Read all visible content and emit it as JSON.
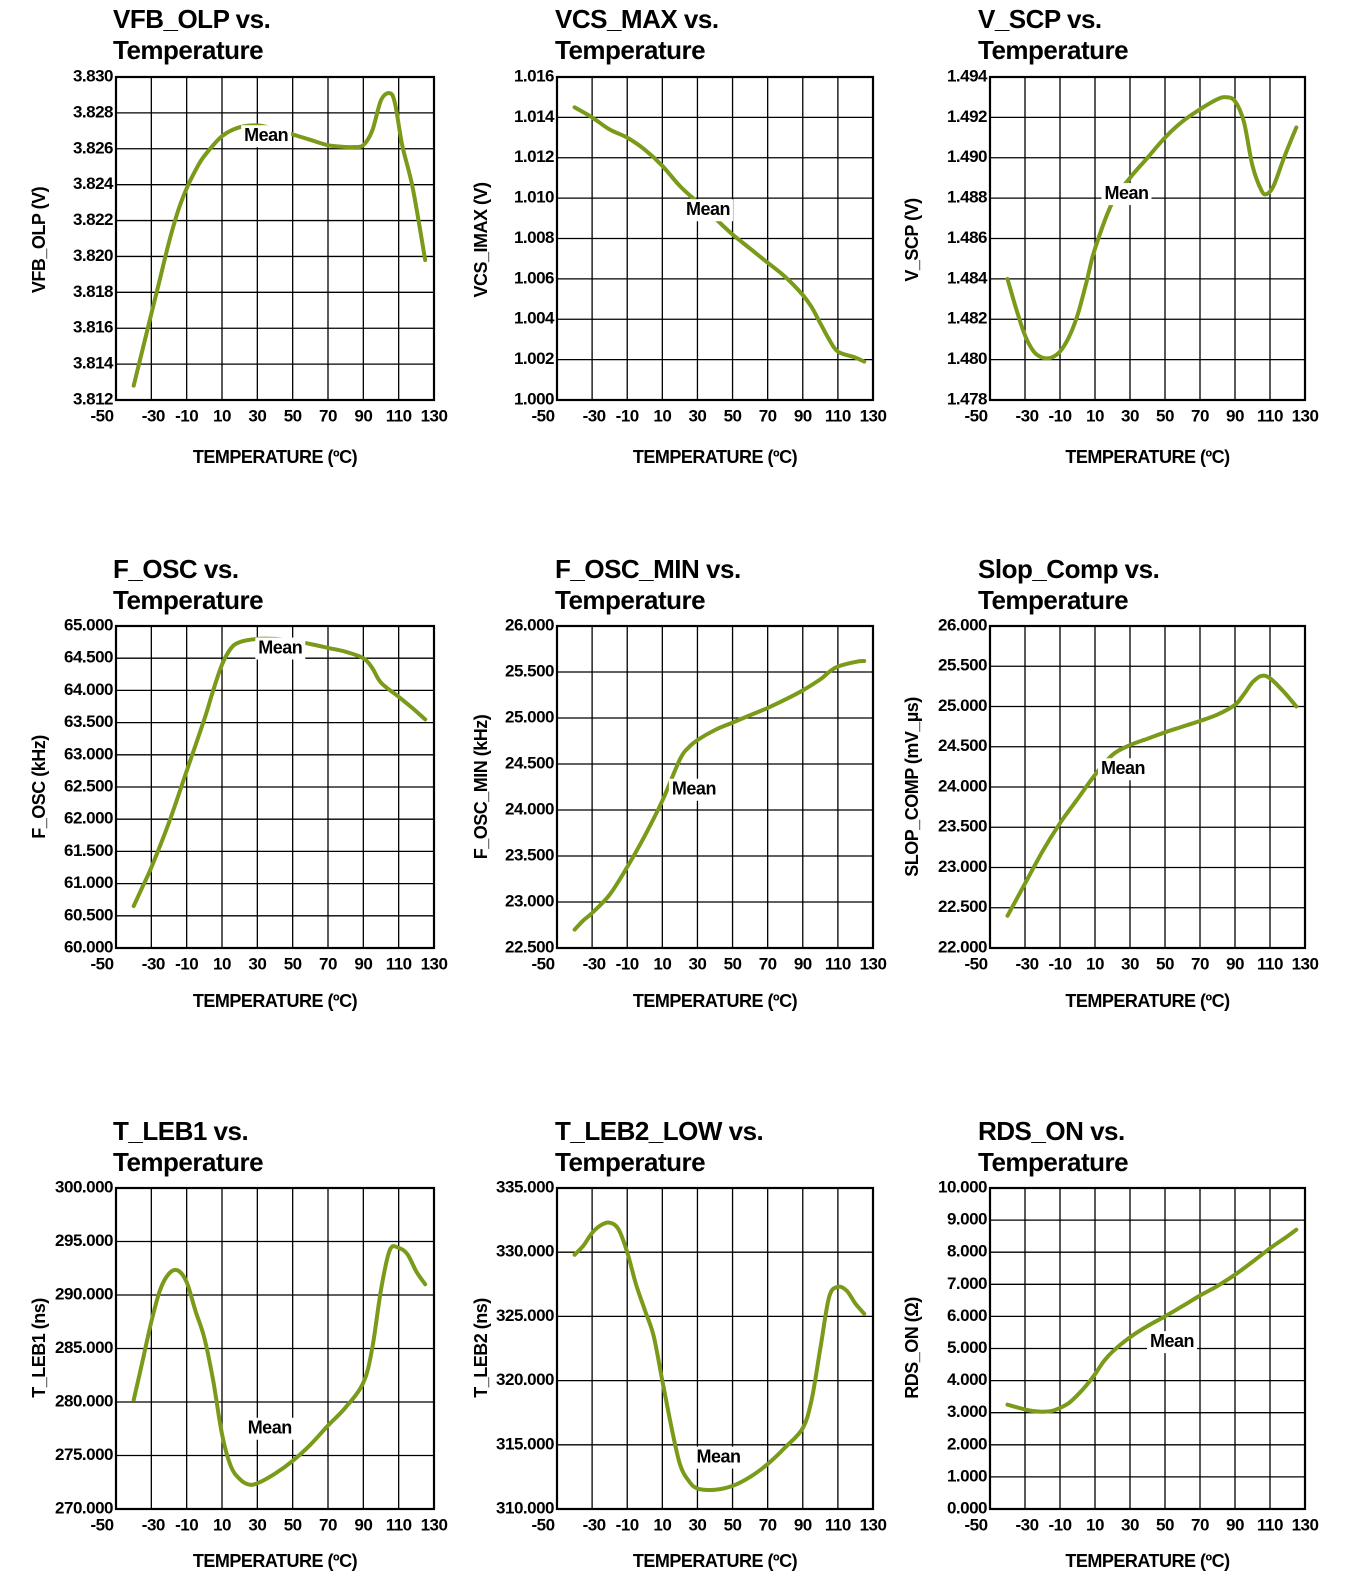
{
  "colors": {
    "curve": "#7a9a1a",
    "grid": "#000000",
    "background": "#ffffff"
  },
  "chart_data": [
    {
      "type": "line",
      "title": [
        "VFB_OLP vs.",
        "Temperature"
      ],
      "xlabel": "TEMPERATURE (ºC)",
      "ylabel": "VFB_OLP (V)",
      "xlim": [
        -50,
        130
      ],
      "xticks": [
        "-50",
        "-30",
        "-10",
        "10",
        "30",
        "50",
        "70",
        "90",
        "110",
        "130"
      ],
      "ylim": [
        3.812,
        3.83
      ],
      "yticks": [
        "3.812",
        "3.814",
        "3.816",
        "3.818",
        "3.820",
        "3.822",
        "3.824",
        "3.826",
        "3.828",
        "3.830"
      ],
      "grid": true,
      "series": [
        {
          "name": "Mean",
          "x": [
            -40,
            -35,
            -30,
            -25,
            -20,
            -15,
            -10,
            -5,
            0,
            10,
            20,
            30,
            40,
            50,
            60,
            70,
            80,
            85,
            90,
            95,
            100,
            105,
            108,
            112,
            118,
            125
          ],
          "values": [
            3.8128,
            3.8148,
            3.8168,
            3.8188,
            3.8208,
            3.8225,
            3.8238,
            3.8248,
            3.8256,
            3.8267,
            3.8272,
            3.8273,
            3.8271,
            3.8268,
            3.8265,
            3.8262,
            3.8261,
            3.8261,
            3.8262,
            3.827,
            3.8287,
            3.8291,
            3.8285,
            3.8262,
            3.8238,
            3.8198
          ]
        }
      ],
      "annotation": {
        "text": "Mean",
        "x": 35,
        "y": 3.8267
      }
    },
    {
      "type": "line",
      "title": [
        "VCS_MAX vs.",
        "Temperature"
      ],
      "xlabel": "TEMPERATURE (ºC)",
      "ylabel": "VCS_IMAX (V)",
      "xlim": [
        -50,
        130
      ],
      "xticks": [
        "-50",
        "-30",
        "-10",
        "10",
        "30",
        "50",
        "70",
        "90",
        "110",
        "130"
      ],
      "ylim": [
        1.0,
        1.016
      ],
      "yticks": [
        "1.000",
        "1.002",
        "1.004",
        "1.006",
        "1.008",
        "1.010",
        "1.012",
        "1.014",
        "1.016"
      ],
      "grid": true,
      "series": [
        {
          "name": "Mean",
          "x": [
            -40,
            -30,
            -20,
            -10,
            0,
            10,
            20,
            30,
            40,
            50,
            60,
            70,
            80,
            90,
            95,
            100,
            105,
            110,
            120,
            125
          ],
          "values": [
            1.0145,
            1.014,
            1.0134,
            1.013,
            1.0124,
            1.0116,
            1.0106,
            1.0098,
            1.009,
            1.0082,
            1.0075,
            1.0068,
            1.0061,
            1.0052,
            1.0046,
            1.0038,
            1.003,
            1.0024,
            1.0021,
            1.0019
          ]
        }
      ],
      "annotation": {
        "text": "Mean",
        "x": 36,
        "y": 1.0094
      }
    },
    {
      "type": "line",
      "title": [
        "V_SCP vs.",
        "Temperature"
      ],
      "xlabel": "TEMPERATURE (ºC)",
      "ylabel": "V_SCP (V)",
      "xlim": [
        -50,
        130
      ],
      "xticks": [
        "-50",
        "-30",
        "-10",
        "10",
        "30",
        "50",
        "70",
        "90",
        "110",
        "130"
      ],
      "ylim": [
        1.478,
        1.494
      ],
      "yticks": [
        "1.478",
        "1.480",
        "1.482",
        "1.484",
        "1.486",
        "1.488",
        "1.490",
        "1.492",
        "1.494"
      ],
      "grid": true,
      "series": [
        {
          "name": "Mean",
          "x": [
            -40,
            -35,
            -30,
            -25,
            -20,
            -15,
            -10,
            -5,
            0,
            5,
            10,
            20,
            30,
            40,
            50,
            60,
            70,
            80,
            85,
            90,
            95,
            100,
            105,
            108,
            112,
            118,
            125
          ],
          "values": [
            1.484,
            1.4825,
            1.4812,
            1.4804,
            1.4801,
            1.4801,
            1.4804,
            1.4811,
            1.4822,
            1.4838,
            1.4855,
            1.4878,
            1.489,
            1.49,
            1.491,
            1.4918,
            1.4924,
            1.4929,
            1.493,
            1.4928,
            1.4918,
            1.4896,
            1.4884,
            1.4882,
            1.4886,
            1.49,
            1.4915
          ]
        }
      ],
      "annotation": {
        "text": "Mean",
        "x": 28,
        "y": 1.4882
      }
    },
    {
      "type": "line",
      "title": [
        "F_OSC vs.",
        "Temperature"
      ],
      "xlabel": "TEMPERATURE (ºC)",
      "ylabel": "F_OSC (kHz)",
      "xlim": [
        -50,
        130
      ],
      "xticks": [
        "-50",
        "-30",
        "-10",
        "10",
        "30",
        "50",
        "70",
        "90",
        "110",
        "130"
      ],
      "ylim": [
        60.0,
        65.0
      ],
      "yticks": [
        "60.000",
        "60.500",
        "61.000",
        "61.500",
        "62.000",
        "62.500",
        "63.000",
        "63.500",
        "64.000",
        "64.500",
        "65.000"
      ],
      "grid": true,
      "series": [
        {
          "name": "Mean",
          "x": [
            -40,
            -35,
            -30,
            -20,
            -10,
            0,
            5,
            10,
            15,
            20,
            30,
            40,
            50,
            60,
            70,
            80,
            90,
            95,
            100,
            110,
            118,
            125
          ],
          "values": [
            60.65,
            60.95,
            61.25,
            61.95,
            62.75,
            63.55,
            64.0,
            64.4,
            64.65,
            64.75,
            64.8,
            64.8,
            64.77,
            64.72,
            64.66,
            64.6,
            64.5,
            64.35,
            64.12,
            63.9,
            63.72,
            63.55
          ]
        }
      ],
      "annotation": {
        "text": "Mean",
        "x": 43,
        "y": 64.65
      }
    },
    {
      "type": "line",
      "title": [
        "F_OSC_MIN vs.",
        "Temperature"
      ],
      "xlabel": "TEMPERATURE (ºC)",
      "ylabel": "F_OSC_MIN (kHz)",
      "xlim": [
        -50,
        130
      ],
      "xticks": [
        "-50",
        "-30",
        "-10",
        "10",
        "30",
        "50",
        "70",
        "90",
        "110",
        "130"
      ],
      "ylim": [
        22.5,
        26.0
      ],
      "yticks": [
        "22.500",
        "23.000",
        "23.500",
        "24.000",
        "24.500",
        "25.000",
        "25.500",
        "26.000"
      ],
      "grid": true,
      "series": [
        {
          "name": "Mean",
          "x": [
            -40,
            -35,
            -30,
            -20,
            -10,
            0,
            10,
            20,
            25,
            30,
            40,
            50,
            60,
            70,
            80,
            90,
            100,
            105,
            110,
            120,
            125
          ],
          "values": [
            22.7,
            22.8,
            22.88,
            23.08,
            23.38,
            23.72,
            24.1,
            24.55,
            24.68,
            24.76,
            24.87,
            24.95,
            25.03,
            25.11,
            25.2,
            25.3,
            25.42,
            25.5,
            25.56,
            25.61,
            25.62
          ]
        }
      ],
      "annotation": {
        "text": "Mean",
        "x": 28,
        "y": 24.22
      }
    },
    {
      "type": "line",
      "title": [
        "Slop_Comp vs.",
        "Temperature"
      ],
      "xlabel": "TEMPERATURE (ºC)",
      "ylabel": "SLOP_COMP (mV_µs)",
      "xlim": [
        -50,
        130
      ],
      "xticks": [
        "-50",
        "-30",
        "-10",
        "10",
        "30",
        "50",
        "70",
        "90",
        "110",
        "130"
      ],
      "ylim": [
        22.0,
        26.0
      ],
      "yticks": [
        "22.000",
        "22.500",
        "23.000",
        "23.500",
        "24.000",
        "24.500",
        "25.000",
        "25.500",
        "26.000"
      ],
      "grid": true,
      "series": [
        {
          "name": "Mean",
          "x": [
            -40,
            -30,
            -20,
            -10,
            0,
            10,
            20,
            30,
            40,
            50,
            60,
            70,
            80,
            90,
            95,
            100,
            105,
            110,
            118,
            125
          ],
          "values": [
            22.4,
            22.8,
            23.2,
            23.55,
            23.85,
            24.15,
            24.4,
            24.52,
            24.6,
            24.68,
            24.75,
            24.82,
            24.9,
            25.02,
            25.15,
            25.3,
            25.38,
            25.35,
            25.18,
            25.0
          ]
        }
      ],
      "annotation": {
        "text": "Mean",
        "x": 26,
        "y": 24.22
      }
    },
    {
      "type": "line",
      "title": [
        "T_LEB1 vs.",
        "Temperature"
      ],
      "xlabel": "TEMPERATURE (ºC)",
      "ylabel": "T_LEB1 (ns)",
      "xlim": [
        -50,
        130
      ],
      "xticks": [
        "-50",
        "-30",
        "-10",
        "10",
        "30",
        "50",
        "70",
        "90",
        "110",
        "130"
      ],
      "ylim": [
        270.0,
        300.0
      ],
      "yticks": [
        "270.000",
        "275.000",
        "280.000",
        "285.000",
        "290.000",
        "295.000",
        "300.000"
      ],
      "grid": true,
      "series": [
        {
          "name": "Mean",
          "x": [
            -40,
            -35,
            -30,
            -25,
            -20,
            -15,
            -10,
            -5,
            0,
            5,
            10,
            15,
            20,
            25,
            30,
            40,
            50,
            60,
            70,
            80,
            90,
            95,
            100,
            105,
            110,
            115,
            120,
            125
          ],
          "values": [
            280.2,
            283.8,
            287.5,
            290.5,
            292.0,
            292.3,
            291.2,
            288.5,
            286.0,
            282.0,
            277.0,
            274.0,
            272.8,
            272.3,
            272.4,
            273.3,
            274.5,
            276.0,
            277.8,
            279.5,
            281.8,
            285.0,
            290.5,
            294.2,
            294.4,
            293.8,
            292.2,
            291.0
          ]
        }
      ],
      "annotation": {
        "text": "Mean",
        "x": 37,
        "y": 277.5
      }
    },
    {
      "type": "line",
      "title": [
        "T_LEB2_LOW vs.",
        "Temperature"
      ],
      "xlabel": "TEMPERATURE (ºC)",
      "ylabel": "T_LEB2 (ns)",
      "xlim": [
        -50,
        130
      ],
      "xticks": [
        "-50",
        "-30",
        "-10",
        "10",
        "30",
        "50",
        "70",
        "90",
        "110",
        "130"
      ],
      "ylim": [
        310.0,
        335.0
      ],
      "yticks": [
        "310.000",
        "315.000",
        "320.000",
        "325.000",
        "330.000",
        "335.000"
      ],
      "grid": true,
      "series": [
        {
          "name": "Mean",
          "x": [
            -40,
            -35,
            -30,
            -25,
            -20,
            -15,
            -10,
            -5,
            0,
            5,
            10,
            15,
            20,
            25,
            30,
            40,
            50,
            60,
            70,
            80,
            90,
            95,
            100,
            105,
            110,
            115,
            120,
            125
          ],
          "values": [
            329.8,
            330.5,
            331.5,
            332.1,
            332.3,
            331.8,
            330.0,
            327.5,
            325.5,
            323.5,
            320.0,
            316.5,
            313.5,
            312.2,
            311.6,
            311.5,
            311.8,
            312.5,
            313.5,
            314.8,
            316.3,
            318.5,
            322.5,
            326.5,
            327.3,
            327.0,
            326.0,
            325.2
          ]
        }
      ],
      "annotation": {
        "text": "Mean",
        "x": 42,
        "y": 314.0
      }
    },
    {
      "type": "line",
      "title": [
        "RDS_ON vs.",
        "Temperature"
      ],
      "xlabel": "TEMPERATURE (ºC)",
      "ylabel": "RDS_ON (Ω)",
      "xlim": [
        -50,
        130
      ],
      "xticks": [
        "-50",
        "-30",
        "-10",
        "10",
        "30",
        "50",
        "70",
        "90",
        "110",
        "130"
      ],
      "ylim": [
        0.0,
        10.0
      ],
      "yticks": [
        "0.000",
        "1.000",
        "2.000",
        "3.000",
        "4.000",
        "5.000",
        "6.000",
        "7.000",
        "8.000",
        "9.000",
        "10.000"
      ],
      "grid": true,
      "series": [
        {
          "name": "Mean",
          "x": [
            -40,
            -30,
            -25,
            -20,
            -15,
            -10,
            -5,
            0,
            5,
            10,
            15,
            20,
            30,
            40,
            50,
            60,
            70,
            80,
            90,
            100,
            110,
            120,
            125
          ],
          "values": [
            3.25,
            3.1,
            3.05,
            3.03,
            3.05,
            3.15,
            3.3,
            3.55,
            3.85,
            4.2,
            4.6,
            4.9,
            5.35,
            5.7,
            6.0,
            6.32,
            6.65,
            6.95,
            7.3,
            7.7,
            8.12,
            8.5,
            8.7
          ]
        }
      ],
      "annotation": {
        "text": "Mean",
        "x": 54,
        "y": 5.2
      }
    }
  ]
}
